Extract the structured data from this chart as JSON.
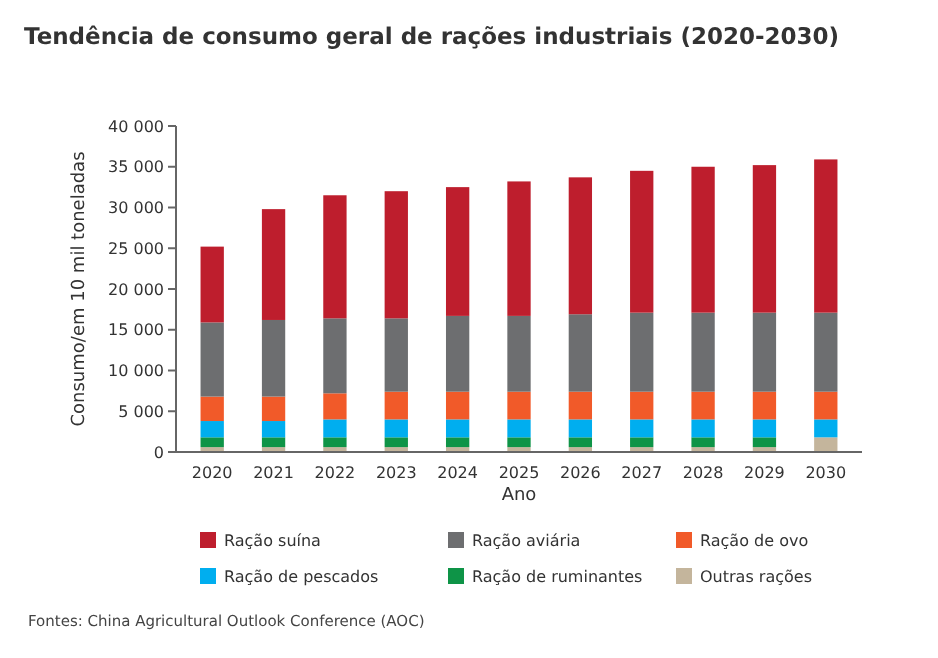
{
  "chart_data": {
    "type": "bar",
    "title": "Tendência de consumo geral de rações industriais (2020-2030)",
    "xlabel": "Ano",
    "ylabel": "Consumo/em 10 mil toneladas",
    "categories": [
      "2020",
      "2021",
      "2022",
      "2023",
      "2024",
      "2025",
      "2026",
      "2027",
      "2028",
      "2029",
      "2030"
    ],
    "stacked": true,
    "legend": "bottom",
    "grid": false,
    "ylim": [
      0,
      40000
    ],
    "yticks": [
      {
        "value": 0,
        "label": "0"
      },
      {
        "value": 5000,
        "label": "5 000"
      },
      {
        "value": 10000,
        "label": "10 000"
      },
      {
        "value": 15000,
        "label": "15 000"
      },
      {
        "value": 20000,
        "label": "20 000"
      },
      {
        "value": 25000,
        "label": "25 000"
      },
      {
        "value": 30000,
        "label": "30 000"
      },
      {
        "value": 35000,
        "label": "35 000"
      },
      {
        "value": 40000,
        "label": "40 000"
      }
    ],
    "series": [
      {
        "name": "Outras rações",
        "color": "#c4b59c",
        "values": [
          600,
          600,
          600,
          600,
          600,
          600,
          600,
          600,
          600,
          600,
          1800
        ]
      },
      {
        "name": "Ração de ruminantes",
        "color": "#0e9447",
        "values": [
          1200,
          1200,
          1200,
          1200,
          1200,
          1200,
          1200,
          1200,
          1200,
          1200,
          null
        ]
      },
      {
        "name": "Ração de pescados",
        "color": "#00aeef",
        "values": [
          2000,
          2000,
          2200,
          2200,
          2200,
          2200,
          2200,
          2200,
          2200,
          2200,
          2200
        ]
      },
      {
        "name": "Ração de ovo",
        "color": "#f15a29",
        "values": [
          3000,
          3000,
          3200,
          3400,
          3400,
          3400,
          3400,
          3400,
          3400,
          3400,
          3400
        ]
      },
      {
        "name": "Ração aviária",
        "color": "#6d6e70",
        "values": [
          9100,
          9400,
          9200,
          9000,
          9300,
          9300,
          9500,
          9700,
          9700,
          9700,
          9700
        ]
      },
      {
        "name": "Ração suína",
        "color": "#be1e2d",
        "values": [
          9300,
          13600,
          15100,
          15600,
          15800,
          16500,
          16800,
          17400,
          17900,
          18100,
          18800
        ]
      }
    ],
    "annotations": [
      "Fontes: China Agricultural Outlook Conference (AOC)"
    ]
  }
}
